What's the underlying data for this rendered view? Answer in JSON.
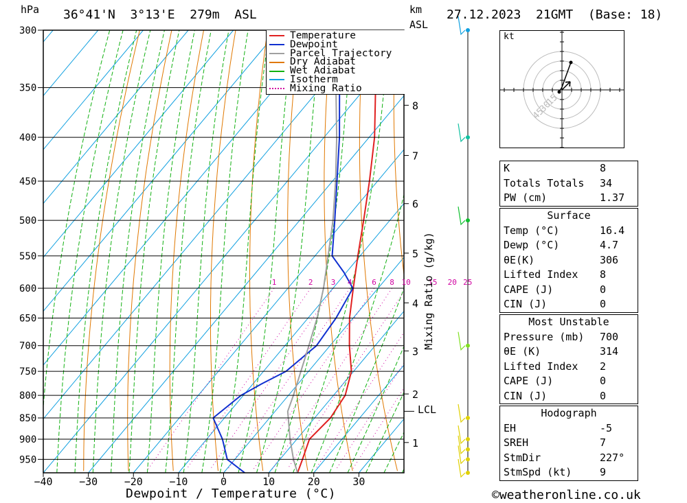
{
  "header": {
    "location": "36°41'N  3°13'E  279m  ASL",
    "datetime": "27.12.2023  21GMT  (Base: 18)",
    "hpa_label": "hPa",
    "km_label": "km",
    "asl_label": "ASL",
    "watermark": "©weatheronline.co.uk",
    "mixing_ratio_axis": "Mixing Ratio (g/kg)",
    "lcl_label": "LCL",
    "hodo_kt": "kt"
  },
  "chart_data": {
    "type": "line",
    "xlabel": "Dewpoint / Temperature (°C)",
    "ylabel": "hPa",
    "xlim": [
      -40,
      40
    ],
    "pressure_ticks": [
      300,
      350,
      400,
      450,
      500,
      550,
      600,
      650,
      700,
      750,
      800,
      850,
      900,
      950
    ],
    "temp_ticks": [
      -40,
      -30,
      -20,
      -10,
      0,
      10,
      20,
      30
    ],
    "temp_tick_labels": [
      "−40",
      "−30",
      "−20",
      "−10",
      "0",
      "10",
      "20",
      "30"
    ],
    "km_ticks": [
      {
        "km": 1,
        "p": 908
      },
      {
        "km": 2,
        "p": 797
      },
      {
        "km": 3,
        "p": 710
      },
      {
        "km": 4,
        "p": 624
      },
      {
        "km": 5,
        "p": 546
      },
      {
        "km": 6,
        "p": 478
      },
      {
        "km": 7,
        "p": 420
      },
      {
        "km": 8,
        "p": 367
      }
    ],
    "km_tick_labels": [
      "1",
      "2",
      "3",
      "4",
      "5",
      "6",
      "7",
      "8"
    ],
    "mixing_ratio_labels": [
      "1",
      "2",
      "3",
      "4",
      "6",
      "8",
      "10",
      "15",
      "20",
      "25"
    ],
    "legend": [
      "Temperature",
      "Dewpoint",
      "Parcel Trajectory",
      "Dry Adiabat",
      "Wet Adiabat",
      "Isotherm",
      "Mixing Ratio"
    ],
    "colors": {
      "temperature": "#e02020",
      "dewpoint": "#1030d0",
      "parcel": "#a0a0a0",
      "dry_adiabat": "#e07800",
      "wet_adiabat": "#10b010",
      "isotherm": "#10a0e0",
      "mixing_ratio": "#d000a0"
    },
    "series": [
      {
        "name": "Temperature",
        "points": [
          [
            985,
            16.4
          ],
          [
            950,
            15
          ],
          [
            900,
            12.8
          ],
          [
            850,
            13.5
          ],
          [
            800,
            12.6
          ],
          [
            750,
            9.5
          ],
          [
            700,
            4.3
          ],
          [
            650,
            -0.8
          ],
          [
            600,
            -5.5
          ],
          [
            550,
            -10.5
          ],
          [
            500,
            -15.8
          ],
          [
            450,
            -21.8
          ],
          [
            400,
            -28.8
          ],
          [
            350,
            -37.8
          ],
          [
            300,
            -47.5
          ]
        ]
      },
      {
        "name": "Dewpoint",
        "points": [
          [
            985,
            4.7
          ],
          [
            950,
            -1.7
          ],
          [
            900,
            -6.5
          ],
          [
            850,
            -12.5
          ],
          [
            800,
            -10.5
          ],
          [
            775,
            -8
          ],
          [
            750,
            -5
          ],
          [
            700,
            -3
          ],
          [
            650,
            -3.8
          ],
          [
            600,
            -5.6
          ],
          [
            575,
            -10.5
          ],
          [
            550,
            -16.2
          ],
          [
            500,
            -22.2
          ],
          [
            450,
            -29
          ],
          [
            400,
            -36.6
          ],
          [
            350,
            -45.8
          ],
          [
            300,
            -55.5
          ]
        ]
      },
      {
        "name": "Parcel Trajectory",
        "points": [
          [
            985,
            16.4
          ],
          [
            950,
            13
          ],
          [
            900,
            8.5
          ],
          [
            835,
            2.8
          ],
          [
            800,
            1.1
          ],
          [
            750,
            -1.7
          ],
          [
            700,
            -4.7
          ],
          [
            650,
            -8
          ],
          [
            600,
            -12.1
          ],
          [
            550,
            -17.1
          ],
          [
            500,
            -22.6
          ],
          [
            450,
            -29.3
          ],
          [
            400,
            -37.2
          ],
          [
            350,
            -46.6
          ],
          [
            300,
            -57
          ]
        ]
      }
    ],
    "lcl_pressure": 835,
    "wind_barbs_pressure": [
      985,
      950,
      925,
      900,
      850,
      700,
      500,
      400,
      300
    ]
  },
  "indices": {
    "basic": [
      {
        "label": "K",
        "value": "8"
      },
      {
        "label": "Totals Totals",
        "value": "34"
      },
      {
        "label": "PW (cm)",
        "value": "1.37"
      }
    ],
    "surface_title": "Surface",
    "surface": [
      {
        "label": "Temp (°C)",
        "value": "16.4"
      },
      {
        "label": "Dewp (°C)",
        "value": "4.7"
      },
      {
        "label": "θE(K)",
        "value": "306"
      },
      {
        "label": "Lifted Index",
        "value": "8"
      },
      {
        "label": "CAPE (J)",
        "value": "0"
      },
      {
        "label": "CIN (J)",
        "value": "0"
      }
    ],
    "mu_title": "Most Unstable",
    "mu": [
      {
        "label": "Pressure (mb)",
        "value": "700"
      },
      {
        "label": "θE (K)",
        "value": "314"
      },
      {
        "label": "Lifted Index",
        "value": "2"
      },
      {
        "label": "CAPE (J)",
        "value": "0"
      },
      {
        "label": "CIN (J)",
        "value": "0"
      }
    ],
    "hodo_title": "Hodograph",
    "hodo": [
      {
        "label": "EH",
        "value": "-5"
      },
      {
        "label": "SREH",
        "value": "7"
      },
      {
        "label": "StmDir",
        "value": "227°"
      },
      {
        "label": "StmSpd (kt)",
        "value": "9"
      }
    ]
  },
  "hodograph": {
    "rings": [
      "15",
      "30",
      "45"
    ]
  }
}
